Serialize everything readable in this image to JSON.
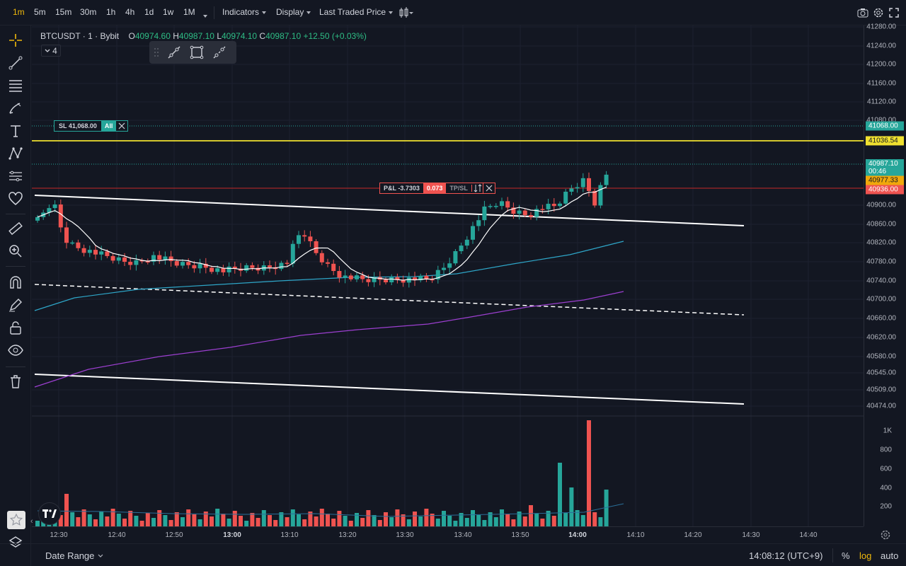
{
  "timeframes": [
    "1m",
    "5m",
    "15m",
    "30m",
    "1h",
    "4h",
    "1d",
    "1w",
    "1M"
  ],
  "active_timeframe": "1m",
  "toolbar": {
    "indicators_label": "Indicators",
    "display_label": "Display",
    "price_type_label": "Last Traded Price"
  },
  "legend": {
    "symbol": "BTCUSDT · 1 · Bybit",
    "open_prefix": "O",
    "open": "40974.60",
    "high_prefix": "H",
    "high": "40987.10",
    "low_prefix": "L",
    "low": "40974.10",
    "close_prefix": "C",
    "close": "40987.10",
    "change": "+12.50 (+0.03%)",
    "indicator_count": "4"
  },
  "sl_tag": {
    "label": "SL 41,068.00",
    "scope": "All"
  },
  "pnl_tag": {
    "label": "P&L -3.7303",
    "qty": "0.073",
    "tpsl": "TP/SL"
  },
  "price_ticks": [
    "41280.00",
    "41240.00",
    "41200.00",
    "41160.00",
    "41120.00",
    "41080.00",
    "40900.00",
    "40860.00",
    "40820.00",
    "40780.00",
    "40740.00",
    "40700.00",
    "40660.00",
    "40620.00",
    "40580.00",
    "40545.00",
    "40509.00",
    "40474.00"
  ],
  "price_labels": {
    "sl": "41068.00",
    "line": "41036.54",
    "last_price": "40987.10",
    "countdown": "00:46",
    "entry": "40977.33",
    "liq": "40936.00"
  },
  "volume_ticks": [
    "1K",
    "800",
    "600",
    "400",
    "200"
  ],
  "time_ticks": [
    {
      "label": "12:30",
      "bold": false
    },
    {
      "label": "12:40",
      "bold": false
    },
    {
      "label": "12:50",
      "bold": false
    },
    {
      "label": "13:00",
      "bold": true
    },
    {
      "label": "13:10",
      "bold": false
    },
    {
      "label": "13:20",
      "bold": false
    },
    {
      "label": "13:30",
      "bold": false
    },
    {
      "label": "13:40",
      "bold": false
    },
    {
      "label": "13:50",
      "bold": false
    },
    {
      "label": "14:00",
      "bold": true
    },
    {
      "label": "14:10",
      "bold": false
    },
    {
      "label": "14:20",
      "bold": false
    },
    {
      "label": "14:30",
      "bold": false
    },
    {
      "label": "14:40",
      "bold": false
    }
  ],
  "bottom": {
    "date_range_label": "Date Range",
    "clock": "14:08:12 (UTC+9)",
    "percent_label": "%",
    "log_label": "log",
    "auto_label": "auto"
  },
  "colors": {
    "up": "#26a69a",
    "down": "#ef5350",
    "accent": "#f0b90b",
    "ema_cyan": "#2ea6c8",
    "ema_purple": "#9c3fd0"
  }
}
